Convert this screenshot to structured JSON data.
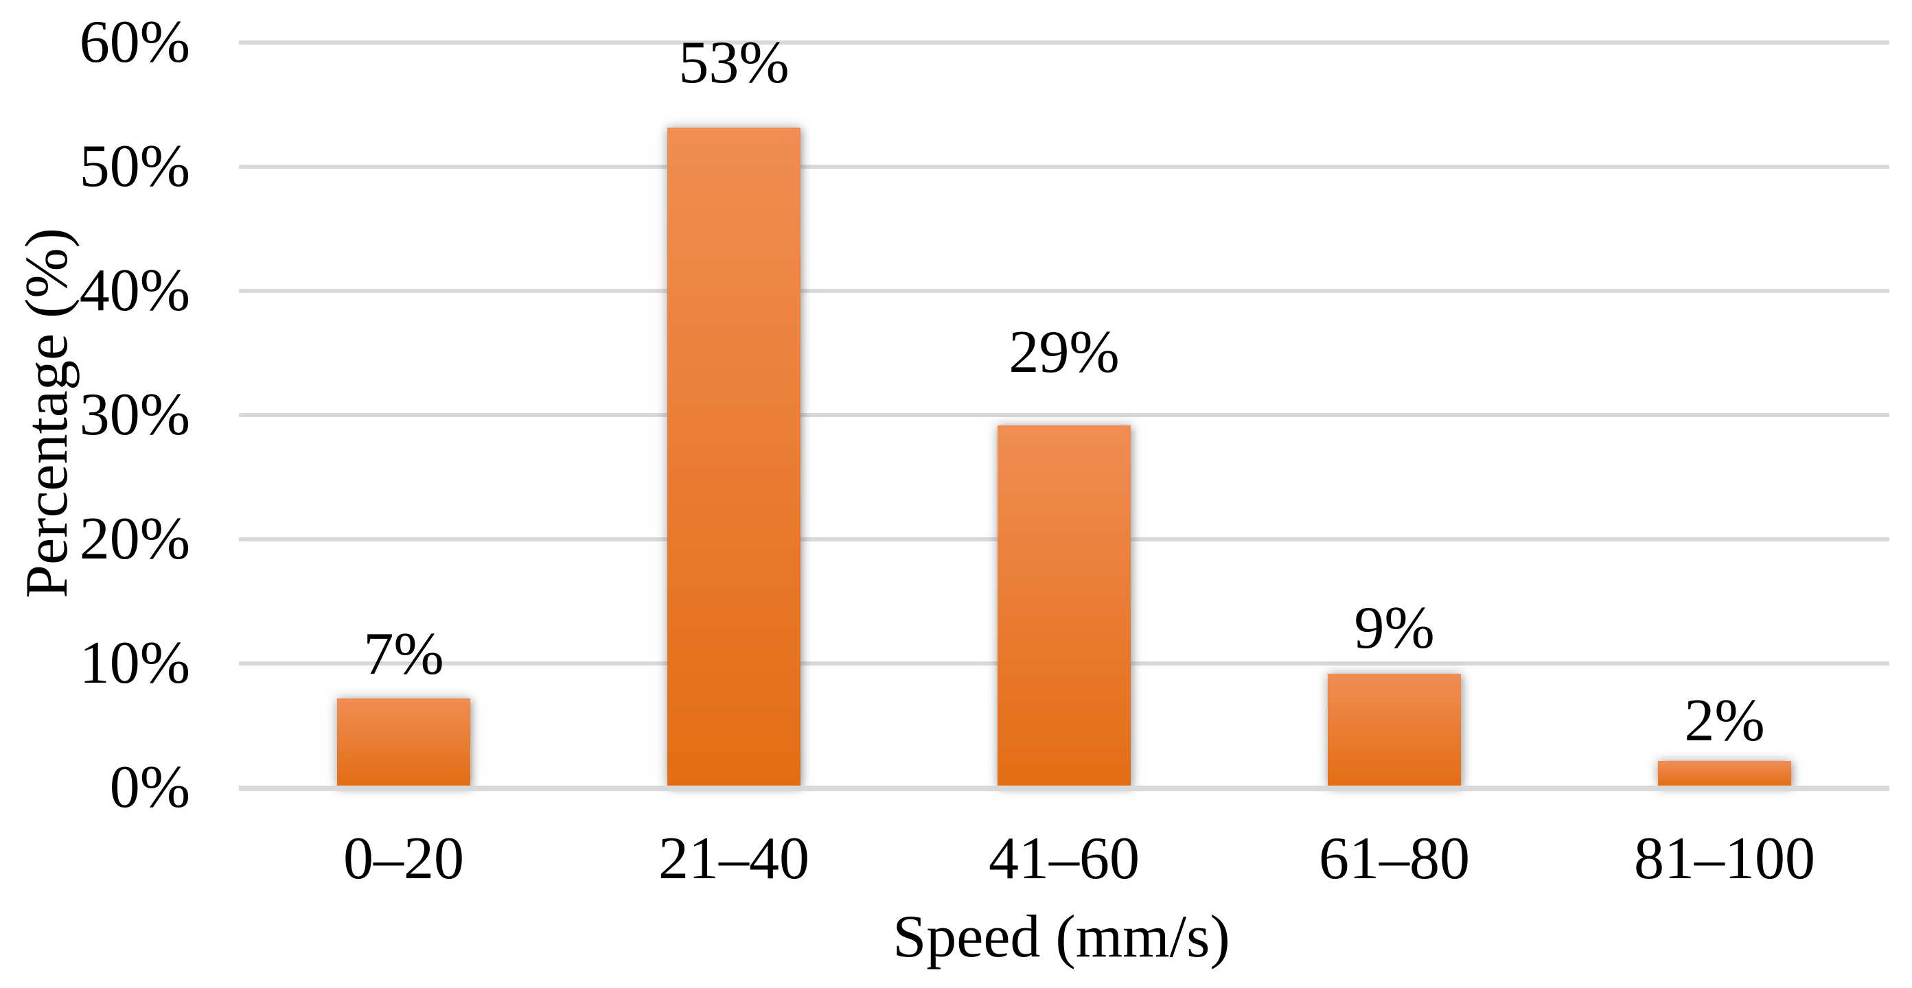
{
  "chart_data": {
    "type": "bar",
    "title": "",
    "categories": [
      "0–20",
      "21–40",
      "41–60",
      "61–80",
      "81–100"
    ],
    "values": [
      7,
      53,
      29,
      9,
      2
    ],
    "bar_value_labels": [
      "7%",
      "53%",
      "29%",
      "9%",
      "2%"
    ],
    "xlabel": "Speed (mm/s)",
    "ylabel": "Percentage (%)",
    "ylim": [
      0,
      60
    ],
    "ytick_interval": 10,
    "ytick_labels": [
      "0%",
      "10%",
      "20%",
      "30%",
      "40%",
      "50%",
      "60%"
    ],
    "grid": "horizontal-on",
    "legend": "none",
    "colors": {
      "bar_gradient_top": "#F18D53",
      "bar_gradient_bottom": "#E26D14",
      "gridline": "#D9D9D9",
      "axis_line": "#D9D9D9",
      "text": "#000000",
      "background": "#FFFFFF"
    }
  }
}
